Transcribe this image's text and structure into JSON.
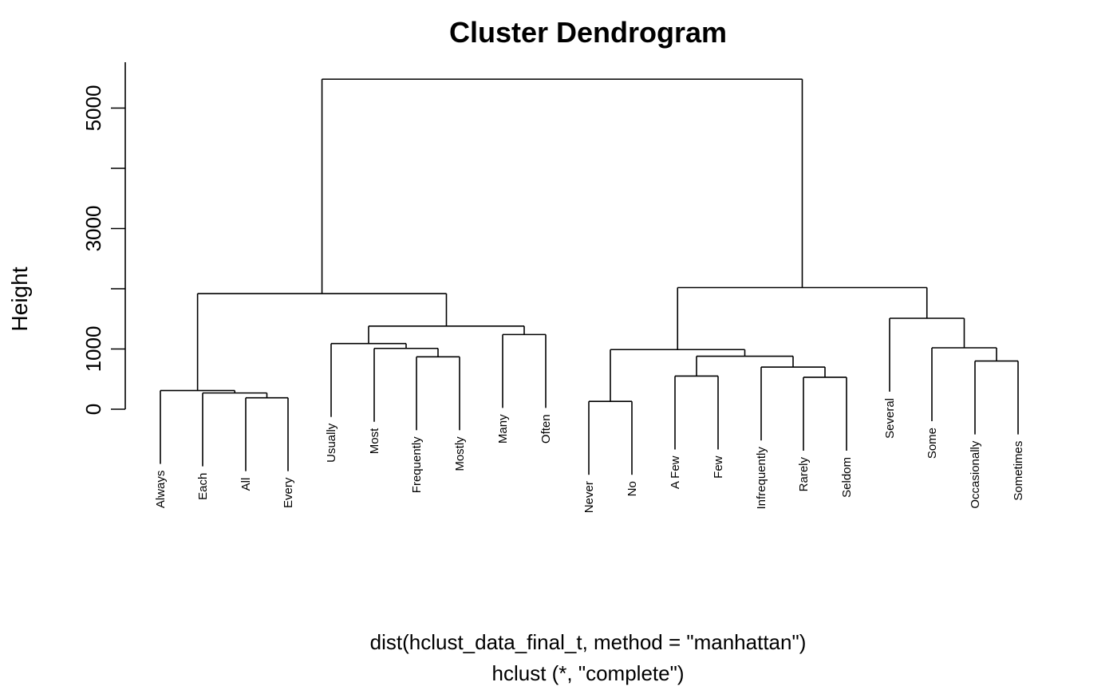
{
  "chart_data": {
    "type": "dendrogram",
    "title": "Cluster Dendrogram",
    "ylabel": "Height",
    "xlabel": "dist(hclust_data_final_t, method = \"manhattan\")",
    "sublabel": "hclust (*, \"complete\")",
    "ylim": [
      0,
      5500
    ],
    "yticks": [
      0,
      1000,
      2000,
      3000,
      4000,
      5000
    ],
    "ytick_labels": [
      "0",
      "1000",
      "",
      "3000",
      "",
      "5000"
    ],
    "leaves": [
      "Always",
      "Each",
      "All",
      "Every",
      "Usually",
      "Most",
      "Frequently",
      "Mostly",
      "Many",
      "Often",
      "Never",
      "No",
      "A Few",
      "Few",
      "Infrequently",
      "Rarely",
      "Seldom",
      "Several",
      "Some",
      "Occasionally",
      "Sometimes"
    ],
    "merges": [
      {
        "left": "L:All",
        "right": "L:Every",
        "height": 190
      },
      {
        "left": "L:Each",
        "right": "M:0",
        "height": 270
      },
      {
        "left": "L:Always",
        "right": "M:1",
        "height": 310
      },
      {
        "left": "L:Frequently",
        "right": "L:Mostly",
        "height": 870
      },
      {
        "left": "L:Most",
        "right": "M:3",
        "height": 1010
      },
      {
        "left": "L:Usually",
        "right": "M:4",
        "height": 1090
      },
      {
        "left": "L:Many",
        "right": "L:Often",
        "height": 1240
      },
      {
        "left": "M:5",
        "right": "M:6",
        "height": 1380
      },
      {
        "left": "M:2",
        "right": "M:7",
        "height": 1920
      },
      {
        "left": "L:Never",
        "right": "L:No",
        "height": 130
      },
      {
        "left": "L:A Few",
        "right": "L:Few",
        "height": 550
      },
      {
        "left": "L:Rarely",
        "right": "L:Seldom",
        "height": 530
      },
      {
        "left": "L:Infrequently",
        "right": "M:11",
        "height": 700
      },
      {
        "left": "M:10",
        "right": "M:12",
        "height": 880
      },
      {
        "left": "M:9",
        "right": "M:13",
        "height": 990
      },
      {
        "left": "L:Occasionally",
        "right": "L:Sometimes",
        "height": 800
      },
      {
        "left": "L:Some",
        "right": "M:15",
        "height": 1020
      },
      {
        "left": "L:Several",
        "right": "M:16",
        "height": 1510
      },
      {
        "left": "M:14",
        "right": "M:17",
        "height": 2020
      },
      {
        "left": "M:8",
        "right": "M:18",
        "height": 5480
      }
    ]
  }
}
